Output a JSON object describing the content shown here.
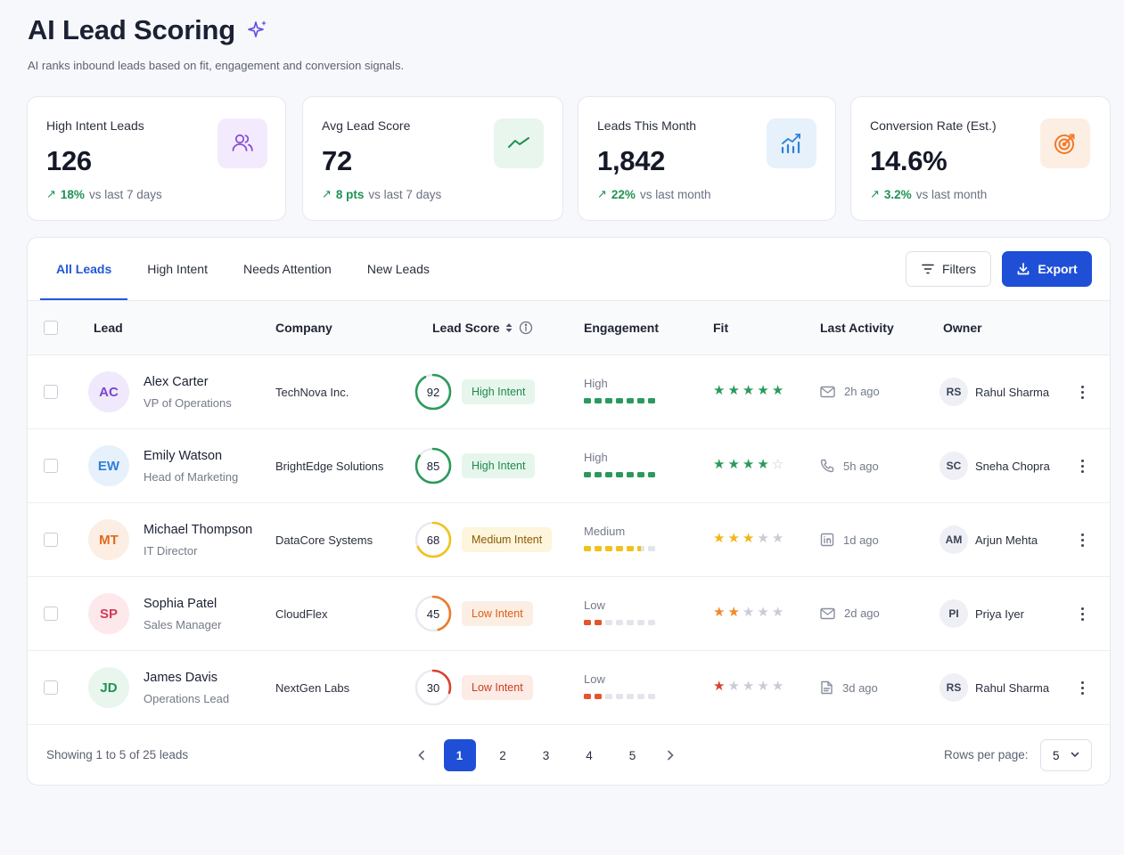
{
  "header": {
    "title": "AI Lead Scoring",
    "subtitle": "AI ranks inbound leads based on fit, engagement and conversion signals."
  },
  "stats": [
    {
      "label": "High Intent Leads",
      "value": "126",
      "trend_value": "18%",
      "trend_text": "vs last 7 days",
      "icon": "users-icon",
      "accent": "#8a4fd8",
      "icon_bg": "#f3ebfd"
    },
    {
      "label": "Avg Lead Score",
      "value": "72",
      "trend_value": "8 pts",
      "trend_text": "vs last 7 days",
      "icon": "trend-line-icon",
      "accent": "#1f9254",
      "icon_bg": "#e8f6ee"
    },
    {
      "label": "Leads This Month",
      "value": "1,842",
      "trend_value": "22%",
      "trend_text": "vs last month",
      "icon": "bar-chart-icon",
      "accent": "#2f7fd8",
      "icon_bg": "#e6f1fc"
    },
    {
      "label": "Conversion Rate (Est.)",
      "value": "14.6%",
      "trend_value": "3.2%",
      "trend_text": "vs last month",
      "icon": "target-icon",
      "accent": "#ee7a2a",
      "icon_bg": "#fdeee3"
    }
  ],
  "tabs": [
    "All Leads",
    "High Intent",
    "Needs Attention",
    "New Leads"
  ],
  "toolbar": {
    "filters_label": "Filters",
    "export_label": "Export"
  },
  "columns": {
    "lead": "Lead",
    "company": "Company",
    "score": "Lead Score",
    "engagement": "Engagement",
    "fit": "Fit",
    "activity": "Last Activity",
    "owner": "Owner"
  },
  "leads": [
    {
      "initials": "AC",
      "name": "Alex Carter",
      "role": "VP of Operations",
      "company": "TechNova Inc.",
      "score": 92,
      "intent": "High Intent",
      "intent_level": "high",
      "engagement": "High",
      "engagement_bars": 7,
      "fit": 5,
      "activity_icon": "mail-icon",
      "activity": "2h ago",
      "owner_initials": "RS",
      "owner": "Rahul Sharma"
    },
    {
      "initials": "EW",
      "name": "Emily Watson",
      "role": "Head of Marketing",
      "company": "BrightEdge Solutions",
      "score": 85,
      "intent": "High Intent",
      "intent_level": "high",
      "engagement": "High",
      "engagement_bars": 7,
      "fit": 4,
      "activity_icon": "phone-icon",
      "activity": "5h ago",
      "owner_initials": "SC",
      "owner": "Sneha Chopra"
    },
    {
      "initials": "MT",
      "name": "Michael Thompson",
      "role": "IT Director",
      "company": "DataCore Systems",
      "score": 68,
      "intent": "Medium Intent",
      "intent_level": "medium",
      "engagement": "Medium",
      "engagement_bars": 5,
      "fit": 3,
      "activity_icon": "linkedin-icon",
      "activity": "1d ago",
      "owner_initials": "AM",
      "owner": "Arjun Mehta"
    },
    {
      "initials": "SP",
      "name": "Sophia Patel",
      "role": "Sales Manager",
      "company": "CloudFlex",
      "score": 45,
      "intent": "Low Intent",
      "intent_level": "low-orange",
      "engagement": "Low",
      "engagement_bars": 2,
      "fit": 2,
      "activity_icon": "mail-icon",
      "activity": "2d ago",
      "owner_initials": "PI",
      "owner": "Priya Iyer"
    },
    {
      "initials": "JD",
      "name": "James Davis",
      "role": "Operations Lead",
      "company": "NextGen Labs",
      "score": 30,
      "intent": "Low Intent",
      "intent_level": "low-red",
      "engagement": "Low",
      "engagement_bars": 2,
      "fit": 1,
      "activity_icon": "document-icon",
      "activity": "3d ago",
      "owner_initials": "RS",
      "owner": "Rahul Sharma"
    }
  ],
  "avatar_colors": [
    {
      "bg": "#efe9fb",
      "fg": "#7a45d0"
    },
    {
      "bg": "#e6f1fc",
      "fg": "#2f7fd8"
    },
    {
      "bg": "#fdeee3",
      "fg": "#e0691d"
    },
    {
      "bg": "#fde8ec",
      "fg": "#d23a55"
    },
    {
      "bg": "#e8f6ee",
      "fg": "#1f9254"
    }
  ],
  "footer": {
    "showing": "Showing 1 to 5 of 25 leads",
    "pages": [
      "1",
      "2",
      "3",
      "4",
      "5"
    ],
    "current_page": "1",
    "rows_label": "Rows per page:",
    "rows_value": "5"
  }
}
